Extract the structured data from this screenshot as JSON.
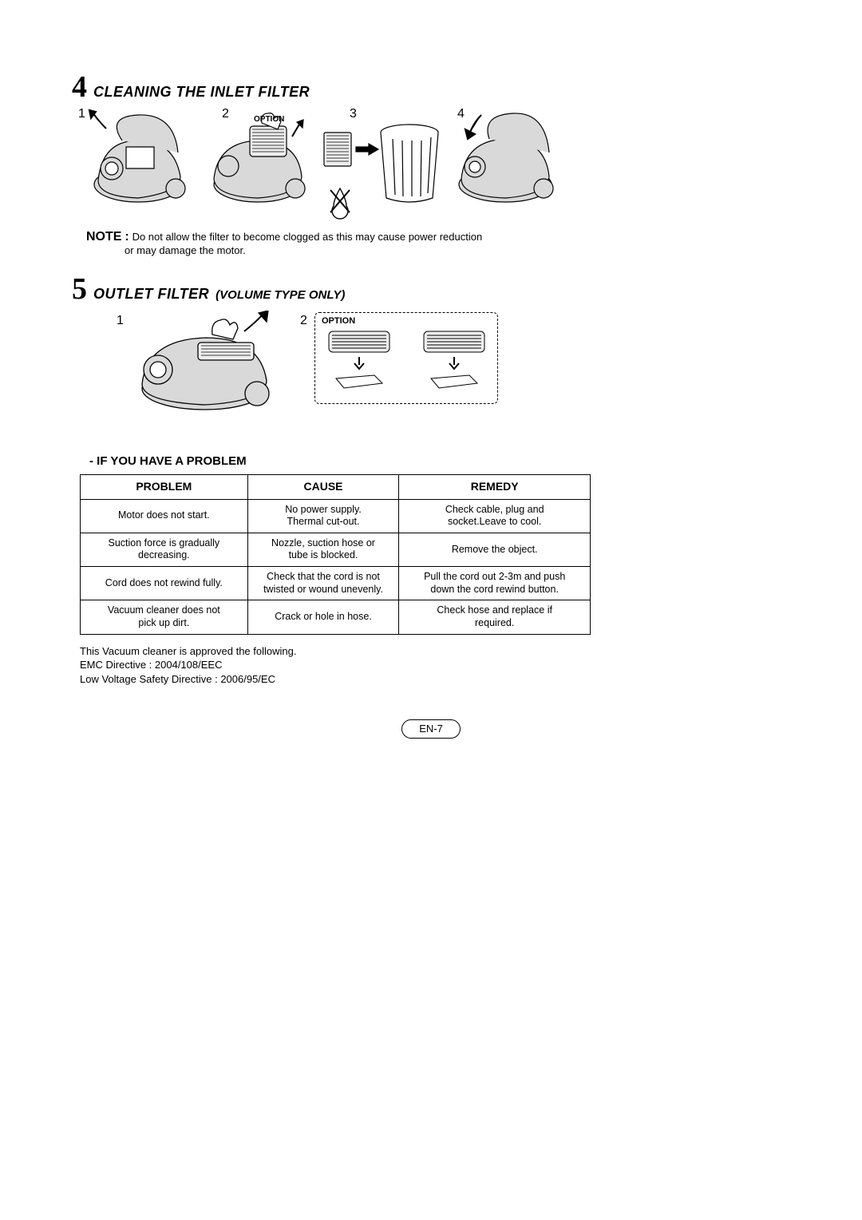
{
  "section4": {
    "number": "4",
    "title": "CLEANING THE INLET FILTER",
    "steps": [
      "1",
      "2",
      "3",
      "4"
    ],
    "option_label": "OPTION",
    "note_label": "NOTE",
    "note_colon": ":",
    "note_line1": "Do not allow the filter to become clogged as this may cause power reduction",
    "note_line2": "or may damage the motor."
  },
  "section5": {
    "number": "5",
    "title": "OUTLET FILTER",
    "subtitle": "(VOLUME TYPE ONLY)",
    "steps": [
      "1",
      "2"
    ],
    "option_label": "OPTION"
  },
  "trouble": {
    "heading": "- IF YOU HAVE A PROBLEM",
    "columns": [
      "PROBLEM",
      "CAUSE",
      "REMEDY"
    ],
    "rows": [
      [
        "Motor does not start.",
        "No power supply.\nThermal cut-out.",
        "Check cable, plug and\nsocket.Leave to cool."
      ],
      [
        "Suction force is gradually\ndecreasing.",
        "Nozzle, suction hose or\ntube is blocked.",
        "Remove the object."
      ],
      [
        "Cord does not rewind fully.",
        "Check that the cord is not\ntwisted or wound unevenly.",
        "Pull the cord out 2-3m and push\ndown the cord rewind button."
      ],
      [
        "Vacuum cleaner does not\npick up dirt.",
        "Crack or hole in hose.",
        "Check hose and replace if\nrequired."
      ]
    ]
  },
  "directives": {
    "line1": "This Vacuum cleaner is approved the following.",
    "line2": "EMC Directive : 2004/108/EEC",
    "line3": "Low Voltage Safety Directive : 2006/95/EC"
  },
  "page_number": "EN-7",
  "colors": {
    "text": "#000000",
    "background": "#ffffff",
    "illustration_fill": "#d9d9d9",
    "illustration_stroke": "#000000"
  }
}
